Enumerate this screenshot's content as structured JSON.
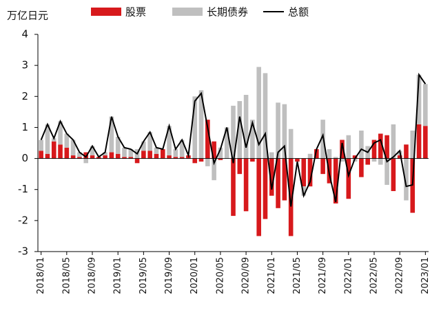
{
  "chart_data": {
    "type": "stacked-bar-line",
    "y_label": "万亿日元",
    "categories": [
      "2018/01",
      null,
      null,
      null,
      "2018/05",
      null,
      null,
      null,
      "2018/09",
      null,
      null,
      null,
      "2019/01",
      null,
      null,
      null,
      "2019/05",
      null,
      null,
      null,
      "2019/09",
      null,
      null,
      null,
      "2020/01",
      null,
      null,
      null,
      "2020/05",
      null,
      null,
      null,
      "2020/09",
      null,
      null,
      null,
      "2021/01",
      null,
      null,
      null,
      "2021/05",
      null,
      null,
      null,
      "2021/09",
      null,
      null,
      null,
      "2022/01",
      null,
      null,
      null,
      "2022/05",
      null,
      null,
      null,
      "2022/09",
      null,
      null,
      null,
      "2023/01"
    ],
    "series": [
      {
        "name": "股票",
        "kind": "bar",
        "color": "#d7191c",
        "values": [
          0.25,
          0.15,
          0.55,
          0.45,
          0.35,
          0.1,
          0.05,
          0.2,
          0.1,
          0.05,
          0.1,
          0.2,
          0.15,
          0.05,
          0.05,
          -0.15,
          0.25,
          0.25,
          0.15,
          0.3,
          0.1,
          0.05,
          0.05,
          0.1,
          -0.15,
          -0.1,
          1.25,
          0.55,
          -0.05,
          0,
          -1.85,
          -0.5,
          -1.7,
          -0.1,
          -2.5,
          -1.95,
          -1.2,
          -1.6,
          -1.35,
          -2.5,
          -0.1,
          -0.9,
          -0.9,
          0.3,
          -0.5,
          -0.8,
          -1.45,
          0.6,
          -1.3,
          0.1,
          -0.6,
          -0.2,
          0.6,
          0.8,
          0.75,
          -1.05,
          0.1,
          0.45,
          -1.75,
          1.1,
          1.05
        ]
      },
      {
        "name": "长期债券",
        "kind": "bar",
        "color": "#bfbfbf",
        "values": [
          0.35,
          0.95,
          0.1,
          0.75,
          0.45,
          0.5,
          0.15,
          -0.15,
          0.3,
          0,
          0.1,
          1.15,
          0.55,
          0.3,
          0.25,
          0.3,
          0.3,
          0.6,
          0.2,
          0,
          0.95,
          0.25,
          0.55,
          0,
          2.0,
          2.2,
          -0.25,
          -0.7,
          0.35,
          1.0,
          1.7,
          1.85,
          2.05,
          1.25,
          2.95,
          2.75,
          0.2,
          1.8,
          1.75,
          0.95,
          0,
          -0.3,
          0.15,
          0,
          1.25,
          0.3,
          0.05,
          -0.1,
          0.75,
          -0.1,
          0.9,
          0.4,
          -0.1,
          -0.2,
          -0.85,
          1.1,
          0.15,
          -1.35,
          0.9,
          1.6,
          1.35
        ]
      },
      {
        "name": "总额",
        "kind": "line",
        "color": "#000000",
        "values": [
          0.6,
          1.1,
          0.65,
          1.2,
          0.8,
          0.6,
          0.2,
          0.05,
          0.4,
          0.05,
          0.2,
          1.35,
          0.7,
          0.35,
          0.3,
          0.15,
          0.55,
          0.85,
          0.35,
          0.3,
          1.05,
          0.3,
          0.6,
          0.1,
          1.85,
          2.1,
          1.0,
          -0.15,
          0.3,
          1.0,
          -0.15,
          1.35,
          0.35,
          1.15,
          0.45,
          0.8,
          -1.0,
          0.2,
          0.4,
          -1.55,
          -0.1,
          -1.2,
          -0.75,
          0.3,
          0.75,
          -0.5,
          -1.4,
          0.5,
          -0.55,
          0,
          0.3,
          0.2,
          0.5,
          0.6,
          -0.1,
          0.05,
          0.25,
          -0.9,
          -0.85,
          2.7,
          2.4
        ]
      }
    ],
    "ylim": [
      -3,
      4
    ],
    "yticks": [
      -3,
      -2,
      -1,
      0,
      1,
      2,
      3,
      4
    ]
  }
}
